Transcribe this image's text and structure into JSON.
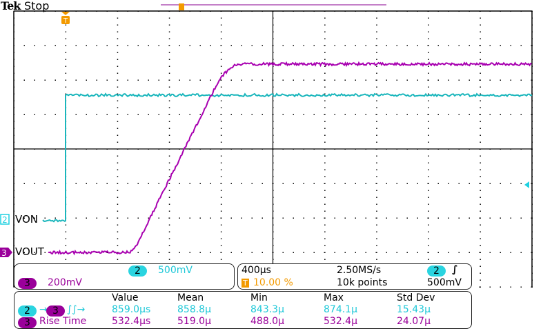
{
  "header": {
    "brand": "Tek",
    "status": "Stop"
  },
  "colors": {
    "ch2": "#1ab6bc",
    "ch3": "#a000a8",
    "trigger": "#f39a00"
  },
  "channels": [
    {
      "number": "2",
      "label": "VON",
      "scale": "500mV"
    },
    {
      "number": "3",
      "label": "VOUT",
      "scale": "200mV"
    }
  ],
  "timebase": {
    "scale": "400µs",
    "trigger_position": "10.00 %",
    "sample_rate": "2.50MS/s",
    "record_length": "10k points",
    "trigger_channel": "2",
    "trigger_slope": "rising-edge-icon",
    "trigger_level": "500mV"
  },
  "measurements": {
    "headers": [
      "Value",
      "Mean",
      "Min",
      "Max",
      "Std Dev"
    ],
    "rows": [
      {
        "source": "2",
        "target": "3",
        "name": "",
        "values": [
          "859.0µs",
          "858.8µ",
          "843.3µ",
          "874.1µ",
          "15.43µ"
        ]
      },
      {
        "source": "3",
        "name": "Rise Time",
        "values": [
          "532.4µs",
          "519.0µ",
          "488.0µ",
          "532.4µ",
          "24.07µ"
        ]
      }
    ]
  }
}
